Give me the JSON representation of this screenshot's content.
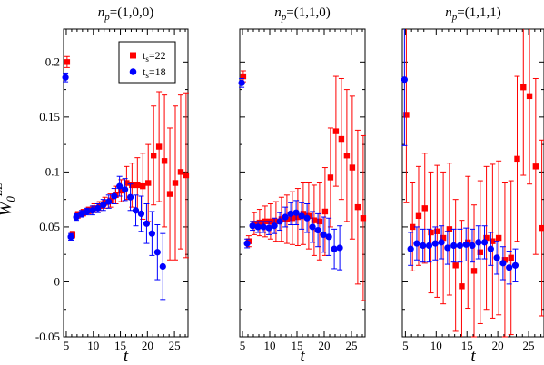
{
  "chart_data": {
    "type": "scatter",
    "ylabel": "W0^LL",
    "ylabel_main": "W",
    "ylabel_sub": "0",
    "ylabel_sup": "LL",
    "xlabel": "t",
    "xlim": [
      4.5,
      27.5
    ],
    "ylim": [
      -0.05,
      0.23
    ],
    "xticks": [
      5,
      10,
      15,
      20,
      25
    ],
    "yticks": [
      -0.05,
      0,
      0.05,
      0.1,
      0.15,
      0.2
    ],
    "ytick_labels": [
      "-0.05",
      "0",
      "0.05",
      "0.1",
      "0.15",
      "0.2"
    ],
    "legend": {
      "placement": "top-right of first panel",
      "entries": [
        {
          "series": "ts22",
          "label_main": "t",
          "label_sub": "s",
          "label_rest": "=22"
        },
        {
          "series": "ts18",
          "label_main": "t",
          "label_sub": "s",
          "label_rest": "=18"
        }
      ]
    },
    "series_styles": {
      "ts22": {
        "color": "#ff0000",
        "marker": "square"
      },
      "ts18": {
        "color": "#0000ff",
        "marker": "circle"
      }
    },
    "panels": [
      {
        "title_main": "n",
        "title_sub": "p",
        "title_rest": "=(1,0,0)",
        "series": {
          "ts22": [
            [
              5,
              0.2,
              0.005
            ],
            [
              6,
              0.043,
              0.003
            ],
            [
              7,
              0.061,
              0.003
            ],
            [
              8,
              0.063,
              0.003
            ],
            [
              9,
              0.065,
              0.003
            ],
            [
              10,
              0.067,
              0.004
            ],
            [
              11,
              0.069,
              0.004
            ],
            [
              12,
              0.072,
              0.005
            ],
            [
              13,
              0.074,
              0.006
            ],
            [
              14,
              0.079,
              0.008
            ],
            [
              15,
              0.083,
              0.01
            ],
            [
              16,
              0.09,
              0.015
            ],
            [
              17,
              0.088,
              0.02
            ],
            [
              18,
              0.088,
              0.025
            ],
            [
              19,
              0.087,
              0.03
            ],
            [
              20,
              0.09,
              0.035
            ],
            [
              21,
              0.115,
              0.045
            ],
            [
              22,
              0.123,
              0.05
            ],
            [
              23,
              0.11,
              0.06
            ],
            [
              24,
              0.08,
              0.06
            ],
            [
              25,
              0.09,
              0.07
            ],
            [
              26,
              0.1,
              0.07
            ],
            [
              27,
              0.097,
              0.075
            ]
          ],
          "ts18": [
            [
              5,
              0.186,
              0.004
            ],
            [
              6,
              0.041,
              0.003
            ],
            [
              7,
              0.059,
              0.003
            ],
            [
              8,
              0.062,
              0.003
            ],
            [
              9,
              0.064,
              0.003
            ],
            [
              10,
              0.065,
              0.004
            ],
            [
              11,
              0.067,
              0.004
            ],
            [
              12,
              0.07,
              0.005
            ],
            [
              13,
              0.073,
              0.006
            ],
            [
              14,
              0.078,
              0.007
            ],
            [
              15,
              0.087,
              0.009
            ],
            [
              16,
              0.084,
              0.01
            ],
            [
              17,
              0.077,
              0.012
            ],
            [
              18,
              0.065,
              0.014
            ],
            [
              19,
              0.062,
              0.016
            ],
            [
              20,
              0.053,
              0.018
            ],
            [
              21,
              0.044,
              0.02
            ],
            [
              22,
              0.027,
              0.025
            ],
            [
              23,
              0.014,
              0.03
            ]
          ]
        }
      },
      {
        "title_main": "n",
        "title_sub": "p",
        "title_rest": "=(1,1,0)",
        "series": {
          "ts22": [
            [
              5,
              0.187,
              0.005
            ],
            [
              6,
              0.037,
              0.005
            ],
            [
              7,
              0.053,
              0.01
            ],
            [
              8,
              0.054,
              0.012
            ],
            [
              9,
              0.055,
              0.014
            ],
            [
              10,
              0.055,
              0.016
            ],
            [
              11,
              0.055,
              0.018
            ],
            [
              12,
              0.057,
              0.02
            ],
            [
              13,
              0.057,
              0.022
            ],
            [
              14,
              0.058,
              0.024
            ],
            [
              15,
              0.059,
              0.026
            ],
            [
              16,
              0.062,
              0.028
            ],
            [
              17,
              0.06,
              0.03
            ],
            [
              18,
              0.056,
              0.032
            ],
            [
              19,
              0.055,
              0.035
            ],
            [
              20,
              0.064,
              0.04
            ],
            [
              21,
              0.095,
              0.045
            ],
            [
              22,
              0.137,
              0.05
            ],
            [
              23,
              0.13,
              0.055
            ],
            [
              24,
              0.115,
              0.06
            ],
            [
              25,
              0.104,
              0.065
            ],
            [
              26,
              0.068,
              0.07
            ],
            [
              27,
              0.058,
              0.075
            ]
          ],
          "ts18": [
            [
              5,
              0.181,
              0.004
            ],
            [
              6,
              0.035,
              0.004
            ],
            [
              7,
              0.051,
              0.004
            ],
            [
              8,
              0.05,
              0.005
            ],
            [
              9,
              0.05,
              0.005
            ],
            [
              10,
              0.049,
              0.006
            ],
            [
              11,
              0.051,
              0.007
            ],
            [
              12,
              0.055,
              0.008
            ],
            [
              13,
              0.059,
              0.009
            ],
            [
              14,
              0.062,
              0.01
            ],
            [
              15,
              0.063,
              0.011
            ],
            [
              16,
              0.06,
              0.012
            ],
            [
              17,
              0.058,
              0.013
            ],
            [
              18,
              0.05,
              0.014
            ],
            [
              19,
              0.047,
              0.015
            ],
            [
              20,
              0.043,
              0.016
            ],
            [
              21,
              0.041,
              0.017
            ],
            [
              22,
              0.03,
              0.018
            ],
            [
              23,
              0.031,
              0.02
            ]
          ]
        }
      },
      {
        "title_main": "n",
        "title_sub": "p",
        "title_rest": "=(1,1,1)",
        "series": {
          "ts22": [
            [
              5,
              0.152,
              0.08
            ],
            [
              6,
              0.05,
              0.04
            ],
            [
              7,
              0.06,
              0.045
            ],
            [
              8,
              0.067,
              0.05
            ],
            [
              9,
              0.045,
              0.055
            ],
            [
              10,
              0.046,
              0.06
            ],
            [
              11,
              0.04,
              0.06
            ],
            [
              12,
              0.048,
              0.06
            ],
            [
              13,
              0.015,
              0.06
            ],
            [
              14,
              -0.004,
              0.06
            ],
            [
              15,
              0.036,
              0.06
            ],
            [
              16,
              0.01,
              0.06
            ],
            [
              17,
              0.027,
              0.065
            ],
            [
              18,
              0.04,
              0.065
            ],
            [
              19,
              0.037,
              0.07
            ],
            [
              20,
              0.04,
              0.07
            ],
            [
              21,
              0.02,
              0.07
            ],
            [
              22,
              0.022,
              0.07
            ],
            [
              23,
              0.112,
              0.075
            ],
            [
              24,
              0.177,
              0.08
            ],
            [
              25,
              0.169,
              0.08
            ],
            [
              26,
              0.105,
              0.08
            ],
            [
              27,
              0.049,
              0.08
            ]
          ],
          "ts18": [
            [
              5,
              0.184,
              0.06
            ],
            [
              6,
              0.03,
              0.015
            ],
            [
              7,
              0.035,
              0.015
            ],
            [
              8,
              0.033,
              0.015
            ],
            [
              9,
              0.033,
              0.015
            ],
            [
              10,
              0.035,
              0.015
            ],
            [
              11,
              0.036,
              0.015
            ],
            [
              12,
              0.031,
              0.015
            ],
            [
              13,
              0.033,
              0.015
            ],
            [
              14,
              0.033,
              0.015
            ],
            [
              15,
              0.034,
              0.015
            ],
            [
              16,
              0.033,
              0.015
            ],
            [
              17,
              0.036,
              0.015
            ],
            [
              18,
              0.036,
              0.015
            ],
            [
              19,
              0.03,
              0.015
            ],
            [
              20,
              0.022,
              0.015
            ],
            [
              21,
              0.017,
              0.015
            ],
            [
              22,
              0.013,
              0.015
            ],
            [
              23,
              0.015,
              0.015
            ]
          ]
        }
      }
    ]
  }
}
